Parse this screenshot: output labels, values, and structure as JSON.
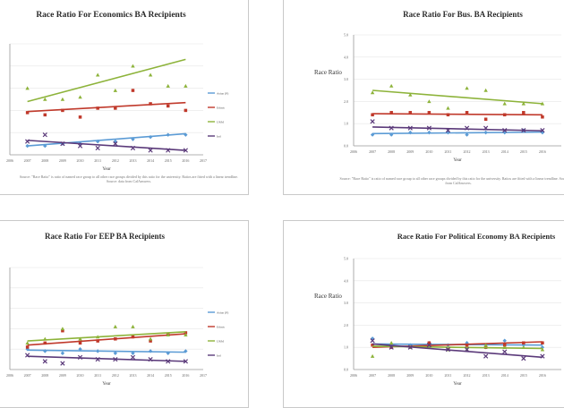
{
  "series_styles": [
    {
      "color": "#5b9bd5",
      "marker": "diamond"
    },
    {
      "color": "#c0392b",
      "marker": "square"
    },
    {
      "color": "#8db33a",
      "marker": "triangle"
    },
    {
      "color": "#5b3a7a",
      "marker": "x"
    }
  ],
  "chart_data": [
    {
      "type": "scatter",
      "title": "Race Ratio For Economics BA Recipients",
      "xlabel": "Year",
      "ylabel": "",
      "xlim": [
        2006,
        2017
      ],
      "ylim": [
        0,
        5
      ],
      "xticks": [
        "2006",
        "2007",
        "2008",
        "2009",
        "2010",
        "2011",
        "2012",
        "2013",
        "2014",
        "2015",
        "2016",
        "2017"
      ],
      "yticks": [],
      "legend": [
        "Asian (P)",
        "Ethnic",
        "URM",
        "Intl"
      ],
      "note": "Source: \"Race Ratio\" is ratio of named race group to all other race groups divided by this ratio for the university. Ratios are fitted with a linear trendline. Source: data from CalAnswers.",
      "x": [
        2007,
        2008,
        2009,
        2010,
        2011,
        2012,
        2013,
        2014,
        2015,
        2016
      ],
      "series": [
        {
          "values": [
            0.4,
            0.4,
            0.5,
            0.5,
            0.6,
            0.6,
            0.7,
            0.8,
            0.9,
            0.9
          ],
          "trend": [
            0.4,
            0.95
          ]
        },
        {
          "values": [
            1.9,
            1.8,
            2.0,
            1.7,
            2.1,
            2.1,
            2.9,
            2.3,
            2.2,
            2.0
          ],
          "trend": [
            1.95,
            2.35
          ]
        },
        {
          "values": [
            3.0,
            2.5,
            2.5,
            2.6,
            3.6,
            2.9,
            4.0,
            3.6,
            3.1,
            3.1
          ],
          "trend": [
            2.4,
            4.3
          ]
        },
        {
          "values": [
            0.6,
            0.9,
            0.5,
            0.4,
            0.3,
            0.5,
            0.3,
            0.2,
            0.2,
            0.2
          ],
          "trend": [
            0.65,
            0.2
          ]
        }
      ]
    },
    {
      "type": "scatter",
      "title": "Race Ratio For Bus. BA Recipients",
      "xlabel": "Year",
      "ylabel": "Race Ratio",
      "xlim": [
        2006,
        2017
      ],
      "ylim": [
        0,
        5
      ],
      "xticks": [
        "2006",
        "2007",
        "2008",
        "2009",
        "2010",
        "2011",
        "2012",
        "2013",
        "2014",
        "2015",
        "2016"
      ],
      "yticks": [
        "0.0",
        "1.0",
        "2.0",
        "3.0",
        "4.0",
        "5.0"
      ],
      "legend": [],
      "note": "Source: \"Race Ratio\" is ratio of named race group to all other race groups divided by this ratio for the university. Ratios are fitted with a linear trendline. Source: data from CalAnswers.",
      "x": [
        2007,
        2008,
        2009,
        2010,
        2011,
        2012,
        2013,
        2014,
        2015,
        2016
      ],
      "series": [
        {
          "values": [
            0.5,
            0.5,
            0.6,
            0.6,
            0.6,
            0.5,
            0.6,
            0.6,
            0.7,
            0.6
          ],
          "trend": [
            0.55,
            0.62
          ]
        },
        {
          "values": [
            1.4,
            1.5,
            1.5,
            1.5,
            1.4,
            1.5,
            1.2,
            1.4,
            1.5,
            1.3
          ],
          "trend": [
            1.45,
            1.4
          ]
        },
        {
          "values": [
            2.4,
            2.7,
            2.3,
            2.0,
            1.7,
            2.6,
            2.5,
            1.9,
            1.9,
            1.9
          ],
          "trend": [
            2.5,
            1.9
          ]
        },
        {
          "values": [
            1.1,
            0.8,
            0.8,
            0.8,
            0.7,
            0.8,
            0.8,
            0.7,
            0.7,
            0.7
          ],
          "trend": [
            0.85,
            0.68
          ]
        }
      ]
    },
    {
      "type": "scatter",
      "title": "Race Ratio For EEP BA Recipients",
      "xlabel": "Year",
      "ylabel": "",
      "xlim": [
        2006,
        2017
      ],
      "ylim": [
        0,
        5
      ],
      "xticks": [
        "2006",
        "2007",
        "2008",
        "2009",
        "2010",
        "2011",
        "2012",
        "2013",
        "2014",
        "2015",
        "2016",
        "2017"
      ],
      "yticks": [],
      "legend": [
        "Asian (P)",
        "Ethnic",
        "URM",
        "Intl"
      ],
      "note": "",
      "x": [
        2007,
        2008,
        2009,
        2010,
        2011,
        2012,
        2013,
        2014,
        2015,
        2016
      ],
      "series": [
        {
          "values": [
            1.0,
            0.9,
            0.8,
            1.0,
            0.9,
            0.8,
            0.8,
            0.9,
            0.8,
            0.9
          ],
          "trend": [
            0.95,
            0.85
          ]
        },
        {
          "values": [
            1.1,
            1.3,
            1.9,
            1.3,
            1.4,
            1.5,
            1.6,
            1.4,
            1.7,
            1.8
          ],
          "trend": [
            1.2,
            1.75
          ]
        },
        {
          "values": [
            1.3,
            1.5,
            2.0,
            1.5,
            1.6,
            2.1,
            2.1,
            1.5,
            1.7,
            1.7
          ],
          "trend": [
            1.4,
            1.85
          ]
        },
        {
          "values": [
            0.7,
            0.4,
            0.3,
            0.6,
            0.5,
            0.5,
            0.6,
            0.5,
            0.4,
            0.4
          ],
          "trend": [
            0.65,
            0.4
          ]
        }
      ]
    },
    {
      "type": "scatter",
      "title": "Race Ratio For Political Economy BA Recipients",
      "xlabel": "Year",
      "ylabel": "Race Ratio",
      "xlim": [
        2006,
        2017
      ],
      "ylim": [
        0,
        5
      ],
      "xticks": [
        "2006",
        "2007",
        "2008",
        "2009",
        "2010",
        "2011",
        "2012",
        "2013",
        "2014",
        "2015",
        "2016"
      ],
      "yticks": [
        "0.0",
        "1.0",
        "2.0",
        "3.0",
        "4.0",
        "5.0"
      ],
      "legend": [],
      "note": "",
      "x": [
        2007,
        2008,
        2009,
        2010,
        2011,
        2012,
        2013,
        2014,
        2015,
        2016
      ],
      "series": [
        {
          "values": [
            1.4,
            1.0,
            1.1,
            1.2,
            1.1,
            1.2,
            1.0,
            1.3,
            1.1,
            1.0
          ],
          "trend": [
            1.15,
            1.1
          ]
        },
        {
          "values": [
            1.1,
            1.0,
            1.0,
            1.2,
            0.9,
            1.1,
            1.0,
            1.1,
            1.2,
            1.2
          ],
          "trend": [
            1.0,
            1.25
          ]
        },
        {
          "values": [
            0.6,
            1.2,
            1.0,
            1.0,
            0.9,
            0.9,
            1.1,
            1.0,
            1.0,
            0.9
          ],
          "trend": [
            1.05,
            0.95
          ]
        },
        {
          "values": [
            1.3,
            1.0,
            1.0,
            1.1,
            0.9,
            0.9,
            0.6,
            0.8,
            0.5,
            0.6
          ],
          "trend": [
            1.15,
            0.55
          ]
        }
      ]
    }
  ]
}
